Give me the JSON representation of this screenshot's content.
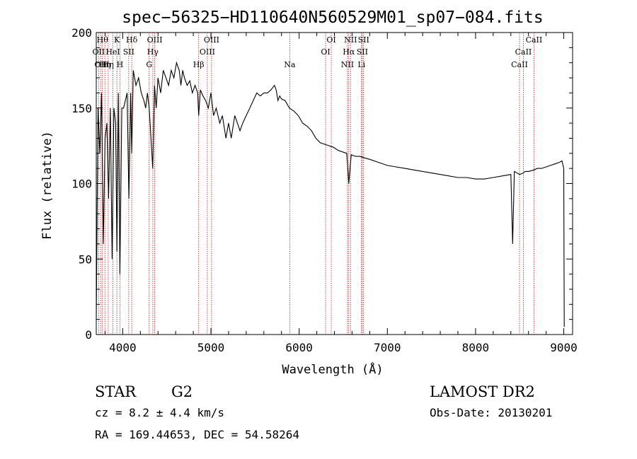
{
  "chart_data": {
    "type": "line",
    "title": "spec−56325−HD110640N560529M01_sp07−084.fits",
    "xlabel": "Wavelength (Å)",
    "ylabel": "Flux (relative)",
    "xlim": [
      3700,
      9100
    ],
    "ylim": [
      0,
      200
    ],
    "x_ticks": [
      4000,
      5000,
      6000,
      7000,
      8000,
      9000
    ],
    "y_ticks": [
      0,
      50,
      100,
      150,
      200
    ],
    "grid": false,
    "series": [
      {
        "x": [
          3700,
          3720,
          3740,
          3760,
          3780,
          3800,
          3820,
          3840,
          3860,
          3880,
          3900,
          3920,
          3934,
          3950,
          3968,
          3990,
          4010,
          4030,
          4050,
          4070,
          4090,
          4102,
          4120,
          4150,
          4180,
          4210,
          4240,
          4260,
          4280,
          4300,
          4320,
          4340,
          4360,
          4380,
          4400,
          4430,
          4460,
          4490,
          4520,
          4550,
          4580,
          4610,
          4640,
          4660,
          4680,
          4700,
          4730,
          4760,
          4790,
          4820,
          4850,
          4861,
          4880,
          4910,
          4940,
          4970,
          5000,
          5030,
          5060,
          5100,
          5130,
          5170,
          5200,
          5230,
          5270,
          5300,
          5330,
          5360,
          5400,
          5440,
          5480,
          5520,
          5560,
          5600,
          5640,
          5680,
          5720,
          5740,
          5760,
          5780,
          5800,
          5840,
          5890,
          5940,
          5990,
          6040,
          6090,
          6140,
          6190,
          6240,
          6290,
          6340,
          6390,
          6440,
          6490,
          6540,
          6563,
          6590,
          6640,
          6690,
          6740,
          6800,
          6900,
          7000,
          7100,
          7200,
          7300,
          7400,
          7500,
          7600,
          7700,
          7800,
          7900,
          8000,
          8100,
          8200,
          8300,
          8400,
          8420,
          8440,
          8500,
          8542,
          8560,
          8600,
          8662,
          8700,
          8750,
          8800,
          8850,
          8900,
          8950,
          8980,
          9000,
          9005
        ],
        "values": [
          10,
          150,
          120,
          160,
          60,
          130,
          140,
          90,
          150,
          50,
          150,
          140,
          55,
          160,
          40,
          150,
          150,
          155,
          160,
          90,
          160,
          120,
          175,
          165,
          170,
          160,
          155,
          150,
          160,
          150,
          130,
          110,
          165,
          150,
          170,
          160,
          175,
          170,
          165,
          175,
          170,
          180,
          175,
          165,
          175,
          170,
          165,
          168,
          160,
          165,
          160,
          145,
          162,
          158,
          155,
          150,
          160,
          145,
          150,
          140,
          145,
          130,
          140,
          130,
          145,
          140,
          135,
          140,
          145,
          150,
          155,
          160,
          158,
          160,
          160,
          162,
          165,
          162,
          155,
          158,
          156,
          155,
          150,
          148,
          145,
          140,
          138,
          135,
          130,
          127,
          126,
          125,
          124,
          122,
          121,
          120,
          100,
          119,
          118,
          118,
          117,
          116,
          114,
          112,
          111,
          110,
          109,
          108,
          107,
          106,
          105,
          104,
          104,
          103,
          103,
          104,
          105,
          106,
          60,
          108,
          106,
          107,
          108,
          108,
          109,
          110,
          110,
          111,
          112,
          113,
          114,
          115,
          110,
          5
        ]
      }
    ],
    "lines": [
      {
        "wl": 3727,
        "label": "OII",
        "row": 1
      },
      {
        "wl": 3750,
        "label": "OII",
        "row": 2
      },
      {
        "wl": 3770,
        "label": "Hθ",
        "row": 0
      },
      {
        "wl": 3798,
        "label": "Hη",
        "row": 2
      },
      {
        "wl": 3835,
        "label": "Hη",
        "row": 2
      },
      {
        "wl": 3889,
        "label": "HeI",
        "row": 1
      },
      {
        "wl": 3934,
        "label": "K",
        "row": 0
      },
      {
        "wl": 3968,
        "label": "H",
        "row": 2
      },
      {
        "wl": 4068,
        "label": "SII",
        "row": 1
      },
      {
        "wl": 4102,
        "label": "Hδ",
        "row": 0
      },
      {
        "wl": 4300,
        "label": "G",
        "row": 2
      },
      {
        "wl": 4341,
        "label": "Hγ",
        "row": 1
      },
      {
        "wl": 4363,
        "label": "OIII",
        "row": 0
      },
      {
        "wl": 4861,
        "label": "Hβ",
        "row": 2
      },
      {
        "wl": 4959,
        "label": "OIII",
        "row": 1
      },
      {
        "wl": 5007,
        "label": "OIII",
        "row": 0
      },
      {
        "wl": 5893,
        "label": "Na",
        "row": 2
      },
      {
        "wl": 6300,
        "label": "OI",
        "row": 1
      },
      {
        "wl": 6364,
        "label": "OI",
        "row": 0
      },
      {
        "wl": 6548,
        "label": "NII",
        "row": 2
      },
      {
        "wl": 6563,
        "label": "Hα",
        "row": 1
      },
      {
        "wl": 6583,
        "label": "NII",
        "row": 0
      },
      {
        "wl": 6707,
        "label": "Li",
        "row": 2
      },
      {
        "wl": 6716,
        "label": "SII",
        "row": 1
      },
      {
        "wl": 6731,
        "label": "SII",
        "row": 0
      },
      {
        "wl": 8498,
        "label": "CaII",
        "row": 2
      },
      {
        "wl": 8542,
        "label": "CaII",
        "row": 1
      },
      {
        "wl": 8662,
        "label": "CaII",
        "row": 0
      }
    ]
  },
  "info": {
    "class_label": "STAR",
    "subclass": "G2",
    "cz": "cz = 8.2 ± 4.4 km/s",
    "radec": "RA = 169.44653, DEC =  54.58264",
    "survey": "LAMOST DR2",
    "obsdate": "Obs-Date: 20130201"
  },
  "colors": {
    "line_marker": "#b22222",
    "spectrum": "#000000"
  }
}
